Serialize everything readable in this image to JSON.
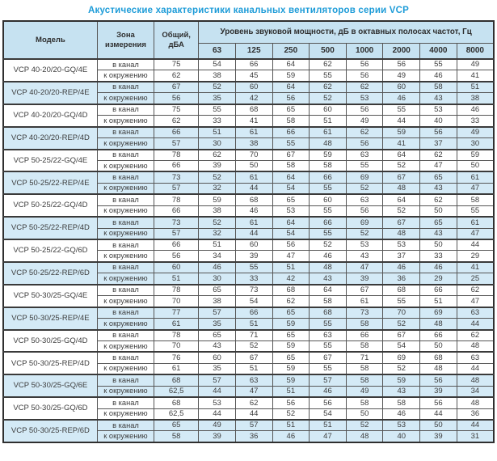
{
  "title": "Акустические характеристики канальных вентиляторов  серии VCP",
  "colors": {
    "title": "#1e9cd8",
    "header_bg": "#c6e2f1",
    "shaded_row_bg": "#d4eaf6",
    "border": "#565656",
    "text": "#3d3d3d"
  },
  "table": {
    "headers": {
      "model": "Модель",
      "zone": "Зона измерения",
      "total": "Общий, дБА",
      "spl_group": "Уровень звуковой мощности, дБ в октавных полосах частот, Гц",
      "frequencies": [
        "63",
        "125",
        "250",
        "500",
        "1000",
        "2000",
        "4000",
        "8000"
      ]
    },
    "zone_labels": [
      "в канал",
      "к окружению"
    ],
    "rows": [
      {
        "model": "VCP 40-20/20-GQ/4E",
        "shaded": false,
        "in_duct": {
          "total": "75",
          "bands": [
            54,
            66,
            64,
            62,
            56,
            56,
            55,
            49
          ]
        },
        "to_ambient": {
          "total": "62",
          "bands": [
            38,
            45,
            59,
            55,
            56,
            49,
            46,
            41
          ]
        }
      },
      {
        "model": "VCP 40-20/20-REP/4E",
        "shaded": true,
        "in_duct": {
          "total": "67",
          "bands": [
            52,
            60,
            64,
            62,
            62,
            60,
            58,
            51
          ]
        },
        "to_ambient": {
          "total": "56",
          "bands": [
            35,
            42,
            56,
            52,
            53,
            46,
            43,
            38
          ]
        }
      },
      {
        "model": "VCP 40-20/20-GQ/4D",
        "shaded": false,
        "in_duct": {
          "total": "75",
          "bands": [
            55,
            68,
            65,
            60,
            56,
            55,
            53,
            46
          ]
        },
        "to_ambient": {
          "total": "62",
          "bands": [
            33,
            41,
            58,
            51,
            49,
            44,
            40,
            33
          ]
        }
      },
      {
        "model": "VCP 40-20/20-REP/4D",
        "shaded": true,
        "in_duct": {
          "total": "66",
          "bands": [
            51,
            61,
            66,
            61,
            62,
            59,
            56,
            49
          ]
        },
        "to_ambient": {
          "total": "57",
          "bands": [
            30,
            38,
            55,
            48,
            56,
            41,
            37,
            30
          ]
        }
      },
      {
        "model": "VCP 50-25/22-GQ/4E",
        "shaded": false,
        "in_duct": {
          "total": "78",
          "bands": [
            62,
            70,
            67,
            59,
            63,
            64,
            62,
            59
          ]
        },
        "to_ambient": {
          "total": "66",
          "bands": [
            39,
            50,
            58,
            58,
            55,
            52,
            47,
            50
          ]
        }
      },
      {
        "model": "VCP 50-25/22-REP/4E",
        "shaded": true,
        "in_duct": {
          "total": "73",
          "bands": [
            52,
            61,
            64,
            66,
            69,
            67,
            65,
            61
          ]
        },
        "to_ambient": {
          "total": "57",
          "bands": [
            32,
            44,
            54,
            55,
            52,
            48,
            43,
            47
          ]
        }
      },
      {
        "model": "VCP 50-25/22-GQ/4D",
        "shaded": false,
        "in_duct": {
          "total": "78",
          "bands": [
            59,
            68,
            65,
            60,
            63,
            64,
            62,
            58
          ]
        },
        "to_ambient": {
          "total": "66",
          "bands": [
            38,
            46,
            53,
            55,
            56,
            52,
            50,
            55
          ]
        }
      },
      {
        "model": "VCP 50-25/22-REP/4D",
        "shaded": true,
        "in_duct": {
          "total": "73",
          "bands": [
            52,
            61,
            64,
            66,
            69,
            67,
            65,
            61
          ]
        },
        "to_ambient": {
          "total": "57",
          "bands": [
            32,
            44,
            54,
            55,
            52,
            48,
            43,
            47
          ]
        }
      },
      {
        "model": "VCP 50-25/22-GQ/6D",
        "shaded": false,
        "in_duct": {
          "total": "66",
          "bands": [
            51,
            60,
            56,
            52,
            53,
            53,
            50,
            44
          ]
        },
        "to_ambient": {
          "total": "56",
          "bands": [
            34,
            39,
            47,
            46,
            43,
            37,
            33,
            29
          ]
        }
      },
      {
        "model": "VCP 50-25/22-REP/6D",
        "shaded": true,
        "in_duct": {
          "total": "60",
          "bands": [
            46,
            55,
            51,
            48,
            47,
            46,
            46,
            41
          ]
        },
        "to_ambient": {
          "total": "51",
          "bands": [
            30,
            33,
            42,
            43,
            39,
            36,
            29,
            25
          ]
        }
      },
      {
        "model": "VCP 50-30/25-GQ/4E",
        "shaded": false,
        "in_duct": {
          "total": "78",
          "bands": [
            65,
            73,
            68,
            64,
            67,
            68,
            66,
            62
          ]
        },
        "to_ambient": {
          "total": "70",
          "bands": [
            38,
            54,
            62,
            58,
            61,
            55,
            51,
            47
          ]
        }
      },
      {
        "model": "VCP 50-30/25-REP/4E",
        "shaded": true,
        "in_duct": {
          "total": "77",
          "bands": [
            57,
            66,
            65,
            68,
            73,
            70,
            69,
            63
          ]
        },
        "to_ambient": {
          "total": "61",
          "bands": [
            35,
            51,
            59,
            55,
            58,
            52,
            48,
            44
          ]
        }
      },
      {
        "model": "VCP 50-30/25-GQ/4D",
        "shaded": false,
        "in_duct": {
          "total": "78",
          "bands": [
            65,
            71,
            65,
            63,
            66,
            67,
            66,
            62
          ]
        },
        "to_ambient": {
          "total": "70",
          "bands": [
            43,
            52,
            59,
            55,
            58,
            54,
            50,
            48
          ]
        }
      },
      {
        "model": "VCP 50-30/25-REP/4D",
        "shaded": false,
        "in_duct": {
          "total": "76",
          "bands": [
            60,
            67,
            65,
            67,
            71,
            69,
            68,
            63
          ]
        },
        "to_ambient": {
          "total": "61",
          "bands": [
            35,
            51,
            59,
            55,
            58,
            52,
            48,
            44
          ]
        }
      },
      {
        "model": "VCP 50-30/25-GQ/6E",
        "shaded": true,
        "in_duct": {
          "total": "68",
          "bands": [
            57,
            63,
            59,
            57,
            58,
            59,
            56,
            48
          ]
        },
        "to_ambient": {
          "total": "62,5",
          "bands": [
            44,
            47,
            51,
            46,
            49,
            43,
            39,
            34
          ]
        }
      },
      {
        "model": "VCP 50-30/25-GQ/6D",
        "shaded": false,
        "in_duct": {
          "total": "68",
          "bands": [
            53,
            62,
            56,
            56,
            58,
            58,
            56,
            48
          ]
        },
        "to_ambient": {
          "total": "62,5",
          "bands": [
            44,
            44,
            52,
            54,
            50,
            46,
            44,
            36
          ]
        }
      },
      {
        "model": "VCP 50-30/25-REP/6D",
        "shaded": true,
        "in_duct": {
          "total": "65",
          "bands": [
            49,
            57,
            51,
            51,
            52,
            53,
            50,
            44
          ]
        },
        "to_ambient": {
          "total": "58",
          "bands": [
            39,
            36,
            46,
            47,
            48,
            40,
            39,
            31
          ]
        }
      }
    ]
  }
}
